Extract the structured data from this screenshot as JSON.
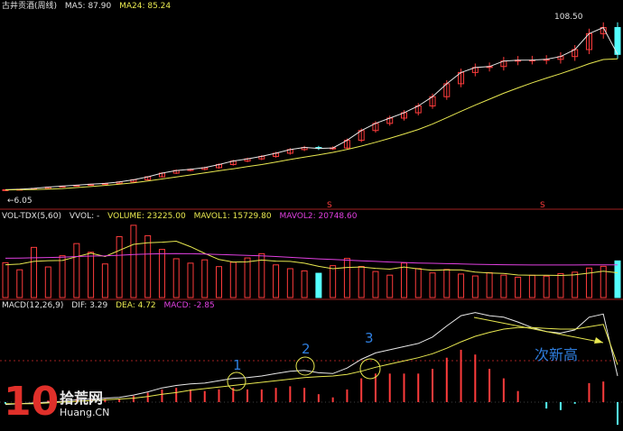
{
  "panels": {
    "price": {
      "title": "古井贡酒(周线)",
      "ma5_label": "MA5: 87.90",
      "ma24_label": "MA24: 85.24",
      "high_label": "108.50",
      "low_label": "6.05"
    },
    "volume": {
      "title": "VOL-TDX(5,60)",
      "vvol_label": "VVOL: -",
      "volume_label": "VOLUME: 23225.00",
      "mavol1_label": "MAVOL1: 15729.80",
      "mavol2_label": "MAVOL2: 20748.60"
    },
    "macd": {
      "title": "MACD(12,26,9)",
      "dif_label": "DIF: 3.29",
      "dea_label": "DEA: 4.72",
      "macd_label": "MACD: -2.85"
    }
  },
  "annotations": {
    "n1": "1",
    "n2": "2",
    "n3": "3",
    "new_high": "次新高"
  },
  "watermark": {
    "digits": "10",
    "brand": "拾荒网",
    "url": "Huang.CN"
  },
  "colors": {
    "up": "#ff3c3c",
    "down": "#54ffff",
    "ma_fast": "#e8e8e8",
    "ma_slow": "#e8e850",
    "mavol2": "#e040e0",
    "annotation": "#2f7fe0"
  },
  "chart_data": [
    {
      "type": "candlestick",
      "series": [
        {
          "name": "MA5",
          "values": [
            6.3,
            6.6,
            7.1,
            7.9,
            8.5,
            9.0,
            9.6,
            10.1,
            11.0,
            12.3,
            14.1,
            16.3,
            17.9,
            18.6,
            19.6,
            21.5,
            23.6,
            24.9,
            26.4,
            28.3,
            30.5,
            31.8,
            31.2,
            31.5,
            36.1,
            42.0,
            46.3,
            49.5,
            52.7,
            56.8,
            62.4,
            70.2,
            77.0,
            80.0,
            80.6,
            83.9,
            84.4,
            84.5,
            84.9,
            86.6,
            90.8,
            100.4,
            104.1,
            87.9
          ]
        },
        {
          "name": "MA24",
          "values": [
            6.2,
            6.3,
            6.4,
            6.7,
            7.0,
            7.6,
            8.2,
            8.9,
            9.6,
            10.5,
            11.6,
            12.8,
            14.0,
            15.2,
            16.5,
            17.7,
            18.9,
            20.2,
            21.5,
            23.0,
            24.5,
            26.0,
            27.3,
            28.8,
            30.6,
            32.6,
            34.9,
            37.3,
            39.9,
            42.6,
            45.9,
            49.7,
            53.6,
            57.3,
            60.9,
            64.5,
            67.7,
            70.8,
            73.6,
            76.3,
            79.2,
            82.3,
            84.8,
            85.2
          ]
        }
      ],
      "x_points": 44,
      "high": 108.5,
      "low": 6.05
    },
    {
      "type": "bar",
      "series": [
        {
          "name": "VOLUME",
          "values": [
            22100,
            17600,
            31800,
            19400,
            26500,
            34200,
            28700,
            21300,
            38600,
            45800,
            39200,
            30500,
            24600,
            21800,
            23900,
            19600,
            22400,
            25100,
            27800,
            20700,
            18300,
            16900,
            15400,
            20200,
            24800,
            19700,
            16500,
            14200,
            21900,
            18400,
            15600,
            17800,
            14900,
            13700,
            15800,
            14200,
            12900,
            14100,
            13600,
            15200,
            16100,
            18700,
            19800,
            23225
          ]
        },
        {
          "name": "MAVOL1",
          "values": [
            20800,
            21200,
            22900,
            23400,
            23500,
            25900,
            28100,
            26000,
            29900,
            33700,
            34700,
            35100,
            35700,
            32200,
            28000,
            24100,
            22500,
            22600,
            23800,
            23100,
            22900,
            21800,
            19800,
            18300,
            19100,
            19400,
            18500,
            18000,
            19400,
            18100,
            17300,
            17600,
            17500,
            16100,
            15600,
            15300,
            14300,
            14100,
            14100,
            14000,
            14400,
            15500,
            16700,
            15730
          ]
        },
        {
          "name": "MAVOL2",
          "values": [
            24900,
            25000,
            25200,
            25400,
            25600,
            26000,
            26300,
            26400,
            26800,
            27300,
            27600,
            27800,
            27900,
            27800,
            27600,
            27300,
            27000,
            26700,
            26400,
            26000,
            25500,
            25000,
            24500,
            24100,
            23700,
            23300,
            22900,
            22500,
            22200,
            21900,
            21700,
            21500,
            21300,
            21100,
            20900,
            20800,
            20700,
            20600,
            20600,
            20600,
            20600,
            20700,
            20700,
            20749
          ]
        }
      ]
    },
    {
      "type": "line",
      "series": [
        {
          "name": "DIF",
          "values": [
            -0.3,
            -0.2,
            -0.1,
            0.0,
            0.1,
            0.3,
            0.4,
            0.5,
            0.6,
            0.9,
            1.3,
            1.8,
            2.1,
            2.3,
            2.4,
            2.7,
            3.0,
            3.1,
            3.3,
            3.6,
            3.9,
            4.0,
            3.7,
            3.6,
            4.3,
            5.4,
            6.2,
            6.6,
            7.0,
            7.4,
            8.2,
            9.6,
            10.9,
            11.3,
            10.9,
            10.7,
            10.1,
            9.4,
            8.9,
            8.7,
            9.1,
            10.7,
            11.1,
            3.29
          ]
        },
        {
          "name": "DEA",
          "values": [
            -0.2,
            -0.2,
            -0.2,
            -0.1,
            0.0,
            0.1,
            0.2,
            0.3,
            0.4,
            0.5,
            0.7,
            1.0,
            1.2,
            1.5,
            1.7,
            1.9,
            2.1,
            2.3,
            2.5,
            2.7,
            2.9,
            3.1,
            3.2,
            3.3,
            3.5,
            3.9,
            4.4,
            4.8,
            5.2,
            5.6,
            6.1,
            6.8,
            7.6,
            8.3,
            8.8,
            9.2,
            9.4,
            9.4,
            9.3,
            9.2,
            9.2,
            9.5,
            9.8,
            4.72
          ]
        }
      ],
      "hist_values": [
        -0.2,
        0.0,
        0.2,
        0.2,
        0.2,
        0.4,
        0.4,
        0.4,
        0.4,
        0.8,
        1.2,
        1.6,
        1.8,
        1.6,
        1.4,
        1.6,
        1.8,
        1.6,
        1.6,
        1.8,
        2.0,
        1.8,
        1.0,
        0.6,
        1.6,
        3.0,
        3.6,
        3.6,
        3.6,
        3.6,
        4.2,
        5.6,
        6.6,
        6.0,
        4.2,
        3.0,
        1.4,
        0.0,
        -0.8,
        -1.0,
        -0.2,
        2.4,
        2.6,
        -2.85
      ]
    }
  ]
}
